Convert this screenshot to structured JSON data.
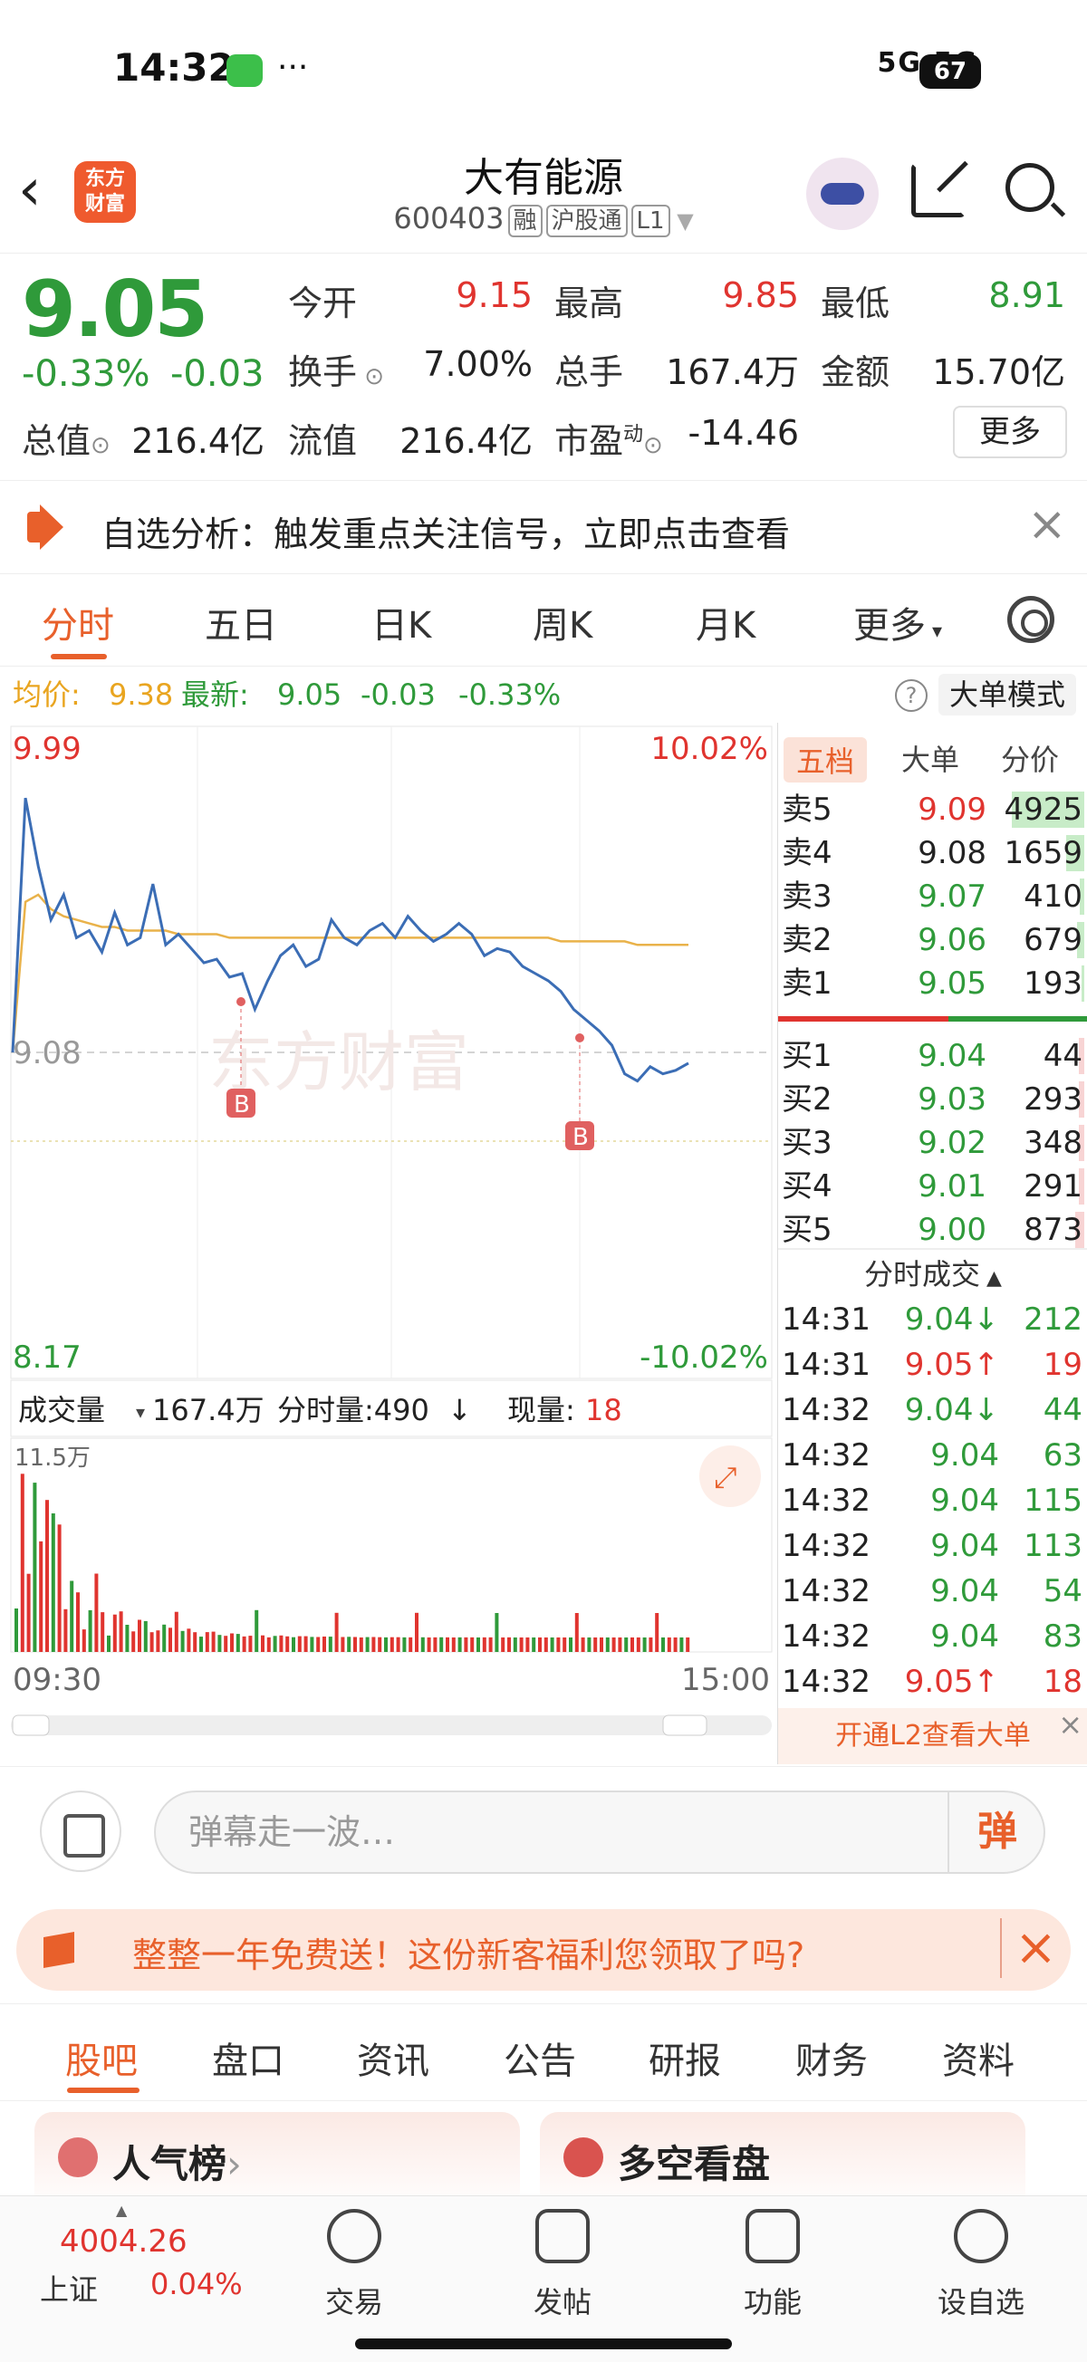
{
  "status": {
    "time": "14:32",
    "dots": "···",
    "network": "5G 5G",
    "battery": "67"
  },
  "header": {
    "back": "‹",
    "logo": "东方\n财富",
    "name": "大有能源",
    "code": "600403",
    "tags": [
      "融",
      "沪股通",
      "L1"
    ]
  },
  "quote": {
    "price": "9.05",
    "chg_pct": "-0.33%",
    "chg_val": "-0.03",
    "open_l": "今开",
    "open_v": "9.15",
    "high_l": "最高",
    "high_v": "9.85",
    "low_l": "最低",
    "low_v": "8.91",
    "turn_l": "换手",
    "turn_v": "7.00%",
    "vol_l": "总手",
    "vol_v": "167.4万",
    "amt_l": "金额",
    "amt_v": "15.70亿",
    "mcap_l": "总值",
    "mcap_v": "216.4亿",
    "float_l": "流值",
    "float_v": "216.4亿",
    "pe_l": "市盈",
    "pe_sup": "动",
    "pe_v": "-14.46",
    "more": "更多"
  },
  "notice": {
    "text": "自选分析：触发重点关注信号，立即点击查看",
    "close": "×"
  },
  "tabs": [
    "分时",
    "五日",
    "日K",
    "周K",
    "月K",
    "更多"
  ],
  "avg": {
    "avg_l": "均价:",
    "avg_v": "9.38",
    "new_l": "最新:",
    "new_v": "9.05",
    "chg": "-0.03",
    "pct": "-0.33%",
    "help": "?",
    "bigmode": "大单模式"
  },
  "chart": {
    "ymax": "9.99",
    "ymax_pct": "10.02%",
    "ymid": "9.08",
    "ymin": "8.17",
    "ymin_pct": "-10.02%",
    "watermark": "东方财富",
    "b_mark": "B",
    "vol_l": "成交量",
    "vol_v": "167.4万",
    "tick_l": "分时量:490",
    "tick_arrow": "↓",
    "cur_l": "现量:",
    "cur_v": "18",
    "vol_max": "11.5万",
    "t_start": "09:30",
    "t_end": "15:00"
  },
  "chart_data": {
    "type": "line",
    "title": "",
    "ylim": [
      8.17,
      9.99
    ],
    "prev_close": 9.08,
    "price": [
      9.08,
      9.79,
      9.6,
      9.45,
      9.52,
      9.4,
      9.42,
      9.36,
      9.47,
      9.38,
      9.4,
      9.55,
      9.38,
      9.41,
      9.37,
      9.33,
      9.34,
      9.29,
      9.3,
      9.2,
      9.28,
      9.35,
      9.38,
      9.32,
      9.34,
      9.45,
      9.4,
      9.38,
      9.42,
      9.44,
      9.4,
      9.46,
      9.42,
      9.39,
      9.41,
      9.44,
      9.41,
      9.35,
      9.37,
      9.36,
      9.32,
      9.3,
      9.28,
      9.25,
      9.2,
      9.17,
      9.14,
      9.1,
      9.02,
      9.0,
      9.04,
      9.02,
      9.03,
      9.05
    ],
    "avg": [
      9.08,
      9.5,
      9.52,
      9.48,
      9.46,
      9.45,
      9.44,
      9.43,
      9.43,
      9.42,
      9.42,
      9.42,
      9.42,
      9.41,
      9.41,
      9.41,
      9.41,
      9.4,
      9.4,
      9.4,
      9.4,
      9.4,
      9.4,
      9.4,
      9.4,
      9.4,
      9.4,
      9.4,
      9.4,
      9.4,
      9.4,
      9.4,
      9.4,
      9.4,
      9.4,
      9.4,
      9.4,
      9.4,
      9.4,
      9.4,
      9.4,
      9.4,
      9.4,
      9.39,
      9.39,
      9.39,
      9.39,
      9.39,
      9.39,
      9.38,
      9.38,
      9.38,
      9.38,
      9.38
    ]
  },
  "orderbook": {
    "tabs": [
      "五档",
      "大单",
      "分价"
    ],
    "sell": [
      {
        "l": "卖5",
        "p": "9.09",
        "v": "4925",
        "w": 0.8
      },
      {
        "l": "卖4",
        "p": "9.08",
        "v": "1659",
        "w": 0.2
      },
      {
        "l": "卖3",
        "p": "9.07",
        "v": "410",
        "w": 0.05
      },
      {
        "l": "卖2",
        "p": "9.06",
        "v": "679",
        "w": 0.08
      },
      {
        "l": "卖1",
        "p": "9.05",
        "v": "193",
        "w": 0.03
      }
    ],
    "buy": [
      {
        "l": "买1",
        "p": "9.04",
        "v": "44",
        "w": 0.01
      },
      {
        "l": "买2",
        "p": "9.03",
        "v": "293",
        "w": 0.04
      },
      {
        "l": "买3",
        "p": "9.02",
        "v": "348",
        "w": 0.05
      },
      {
        "l": "买4",
        "p": "9.01",
        "v": "291",
        "w": 0.04
      },
      {
        "l": "买5",
        "p": "9.00",
        "v": "873",
        "w": 0.1
      }
    ],
    "trades_title": "分时成交",
    "trades": [
      {
        "t": "14:31",
        "p": "9.04↓",
        "v": "212",
        "c": "green"
      },
      {
        "t": "14:31",
        "p": "9.05↑",
        "v": "19",
        "c": "red"
      },
      {
        "t": "14:32",
        "p": "9.04↓",
        "v": "44",
        "c": "green"
      },
      {
        "t": "14:32",
        "p": "9.04",
        "v": "63",
        "c": "green"
      },
      {
        "t": "14:32",
        "p": "9.04",
        "v": "115",
        "c": "green"
      },
      {
        "t": "14:32",
        "p": "9.04",
        "v": "113",
        "c": "green"
      },
      {
        "t": "14:32",
        "p": "9.04",
        "v": "54",
        "c": "green"
      },
      {
        "t": "14:32",
        "p": "9.04",
        "v": "83",
        "c": "green"
      },
      {
        "t": "14:32",
        "p": "9.05↑",
        "v": "18",
        "c": "red"
      }
    ],
    "l2": "开通L2查看大单",
    "l2_close": "×"
  },
  "danmu": {
    "placeholder": "弹幕走一波…",
    "send": "弹"
  },
  "promo": {
    "text": "整整一年免费送！这份新客福利您领取了吗?",
    "close": "×"
  },
  "bottom_tabs": [
    "股吧",
    "盘口",
    "资讯",
    "公告",
    "研报",
    "财务",
    "资料"
  ],
  "cards": [
    {
      "title": "人气榜",
      "arrow": "›"
    },
    {
      "title": "多空看盘"
    }
  ],
  "nav": {
    "idx_val": "4004.26",
    "idx_name": "上证",
    "idx_pct": "0.04%",
    "items": [
      "交易",
      "发帖",
      "功能",
      "设自选"
    ]
  }
}
